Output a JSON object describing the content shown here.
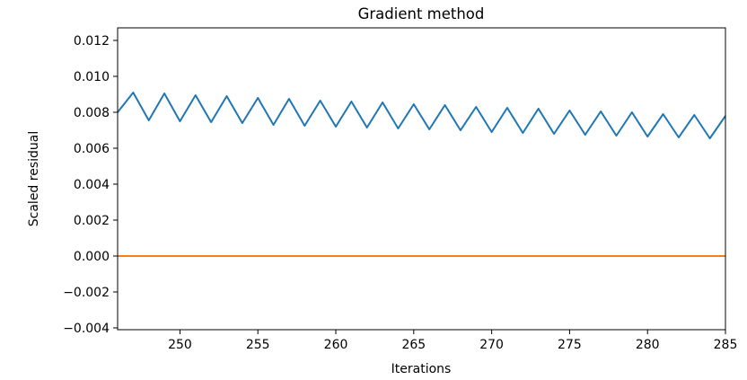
{
  "chart_data": {
    "type": "line",
    "title": "Gradient method",
    "xlabel": "Iterations",
    "ylabel": "Scaled residual",
    "xlim": [
      246,
      285
    ],
    "ylim": [
      -0.0041,
      0.0127
    ],
    "xticks": [
      250,
      255,
      260,
      265,
      270,
      275,
      280,
      285
    ],
    "yticks": [
      -0.004,
      -0.002,
      0.0,
      0.002,
      0.004,
      0.006,
      0.008,
      0.01,
      0.012
    ],
    "xtick_labels": [
      "250",
      "255",
      "260",
      "265",
      "270",
      "275",
      "280",
      "285"
    ],
    "ytick_labels": [
      "−0.004",
      "−0.002",
      "0.000",
      "0.002",
      "0.004",
      "0.006",
      "0.008",
      "0.010",
      "0.012"
    ],
    "grid": false,
    "series": [
      {
        "color": "#1f77b4",
        "x": [
          246,
          247,
          248,
          249,
          250,
          251,
          252,
          253,
          254,
          255,
          256,
          257,
          258,
          259,
          260,
          261,
          262,
          263,
          264,
          265,
          266,
          267,
          268,
          269,
          270,
          271,
          272,
          273,
          274,
          275,
          276,
          277,
          278,
          279,
          280,
          281,
          282,
          283,
          284,
          285
        ],
        "y": [
          0.008,
          0.0091,
          0.00755,
          0.00905,
          0.0075,
          0.00895,
          0.00745,
          0.0089,
          0.0074,
          0.0088,
          0.0073,
          0.00875,
          0.00725,
          0.00865,
          0.0072,
          0.0086,
          0.00715,
          0.00855,
          0.0071,
          0.00845,
          0.00705,
          0.0084,
          0.007,
          0.0083,
          0.0069,
          0.00825,
          0.00685,
          0.0082,
          0.0068,
          0.0081,
          0.00675,
          0.00805,
          0.0067,
          0.008,
          0.00665,
          0.0079,
          0.0066,
          0.00785,
          0.00655,
          0.0078
        ]
      },
      {
        "color": "#ff7f0e",
        "x": [
          246,
          285
        ],
        "y": [
          0.0,
          0.0
        ]
      }
    ]
  }
}
